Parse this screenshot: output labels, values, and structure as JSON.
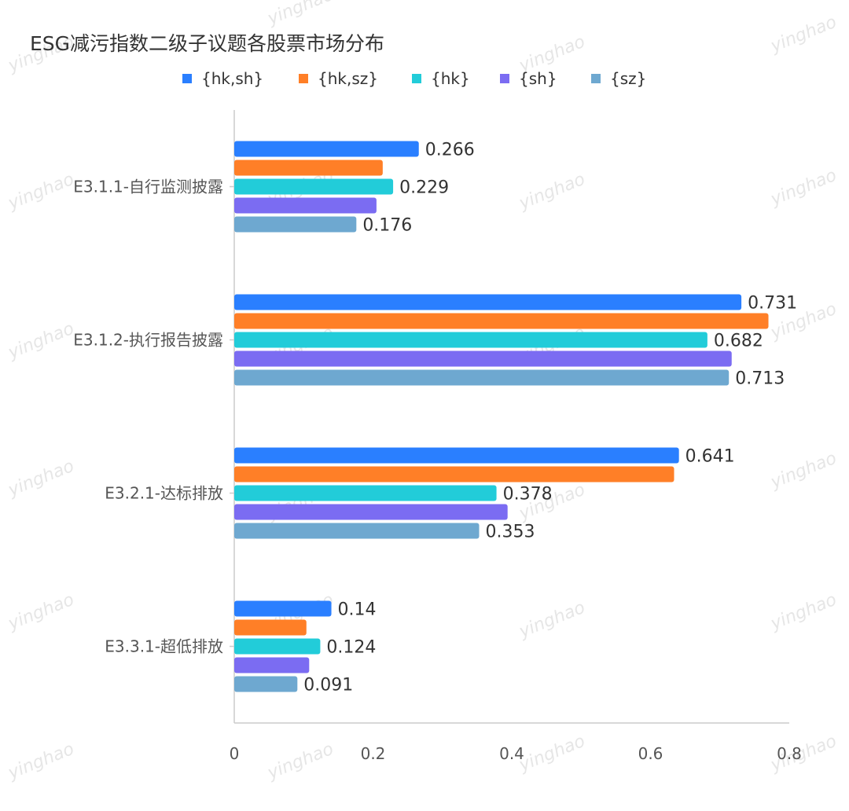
{
  "chart_data": {
    "type": "bar",
    "orientation": "horizontal",
    "title": "ESG减污指数二级子议题各股票市场分布",
    "categories": [
      "E3.1.1-自行监测披露",
      "E3.1.2-执行报告披露",
      "E3.2.1-达标排放",
      "E3.3.1-超低排放"
    ],
    "series": [
      {
        "name": "{hk,sh}",
        "color": "#2a7fff",
        "values": [
          0.266,
          0.731,
          0.641,
          0.14
        ],
        "labels": [
          "0.266",
          "0.731",
          "0.641",
          "0.14"
        ]
      },
      {
        "name": "{hk,sz}",
        "color": "#ff7f27",
        "values": [
          0.214,
          0.77,
          0.634,
          0.104
        ],
        "labels": [
          "",
          "",
          "",
          ""
        ]
      },
      {
        "name": "{hk}",
        "color": "#22ccd9",
        "values": [
          0.229,
          0.682,
          0.378,
          0.124
        ],
        "labels": [
          "0.229",
          "0.682",
          "0.378",
          "0.124"
        ]
      },
      {
        "name": "{sh}",
        "color": "#7b6cf2",
        "values": [
          0.205,
          0.717,
          0.394,
          0.108
        ],
        "labels": [
          "",
          "",
          "",
          ""
        ]
      },
      {
        "name": "{sz}",
        "color": "#6ea8d0",
        "values": [
          0.176,
          0.713,
          0.353,
          0.091
        ],
        "labels": [
          "0.176",
          "0.713",
          "0.353",
          "0.091"
        ]
      }
    ],
    "xlim": [
      0,
      0.8
    ],
    "xticks": [
      "0",
      "0.2",
      "0.4",
      "0.6",
      "0.8"
    ],
    "grid": false,
    "legend_position": "top-center"
  },
  "watermark": "yinghao"
}
